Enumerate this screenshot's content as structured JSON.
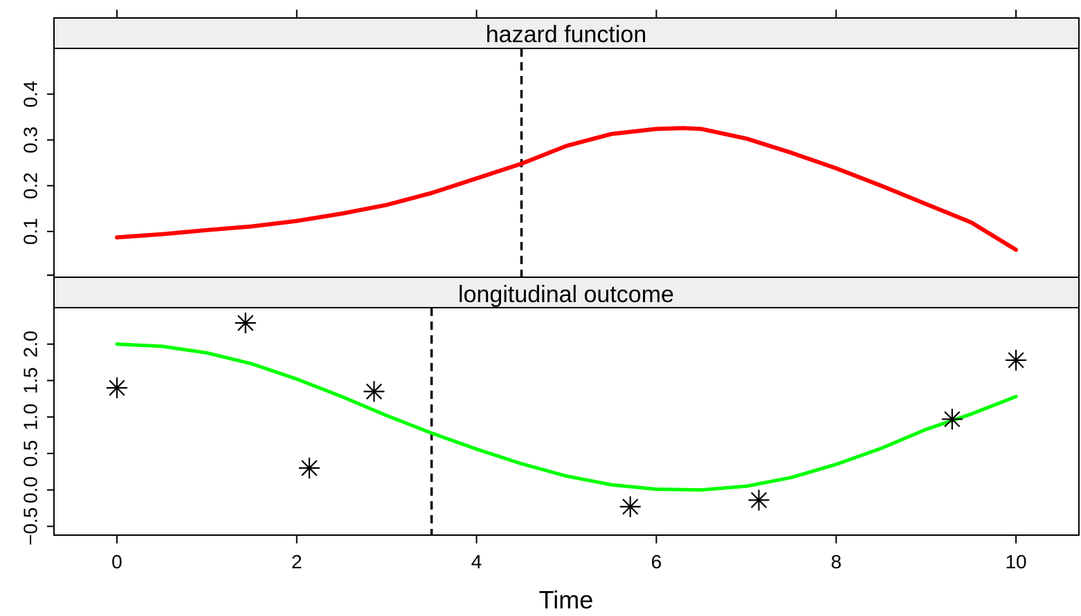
{
  "chart_data": [
    {
      "type": "line",
      "panel": "top",
      "title": "hazard function",
      "xlim": [
        -0.7,
        10.7
      ],
      "ylim": [
        0,
        0.5
      ],
      "x_ticks": [
        "0",
        "2",
        "4",
        "6",
        "8",
        "10"
      ],
      "y_ticks": [
        "0.1",
        "0.2",
        "0.3",
        "0.4"
      ],
      "series": [
        {
          "color": "#ff0000",
          "x": [
            0,
            0.5,
            1,
            1.5,
            2,
            2.5,
            3,
            3.5,
            4,
            4.5,
            5,
            5.5,
            6,
            6.3,
            6.5,
            7,
            7.5,
            8,
            8.5,
            9,
            9.5,
            10
          ],
          "y": [
            0.087,
            0.094,
            0.103,
            0.111,
            0.123,
            0.139,
            0.158,
            0.184,
            0.216,
            0.248,
            0.287,
            0.313,
            0.324,
            0.326,
            0.324,
            0.303,
            0.272,
            0.238,
            0.2,
            0.16,
            0.12,
            0.06
          ]
        }
      ],
      "vline": {
        "x": 4.5,
        "style": "dashed"
      }
    },
    {
      "type": "line",
      "panel": "bottom",
      "title": "longitudinal outcome",
      "xlim": [
        -0.7,
        10.7
      ],
      "ylim": [
        -0.62,
        2.5
      ],
      "xlabel": "Time",
      "x_ticks": [
        "0",
        "2",
        "4",
        "6",
        "8",
        "10"
      ],
      "y_ticks": [
        "−0.5",
        "0.0",
        "0.5",
        "1.0",
        "1.5",
        "2.0"
      ],
      "series": [
        {
          "color": "#00ff00",
          "x": [
            0,
            0.5,
            1,
            1.5,
            2,
            2.5,
            3,
            3.5,
            4,
            4.5,
            5,
            5.5,
            6,
            6.5,
            7,
            7.5,
            8,
            8.5,
            9,
            9.5,
            10
          ],
          "y": [
            2.0,
            1.97,
            1.88,
            1.73,
            1.52,
            1.28,
            1.02,
            0.78,
            0.56,
            0.36,
            0.19,
            0.07,
            0.01,
            0.0,
            0.05,
            0.17,
            0.35,
            0.57,
            0.83,
            1.04,
            1.28
          ]
        },
        {
          "type": "scatter",
          "marker": "asterisk",
          "x": [
            0,
            1.43,
            2.14,
            2.86,
            5.71,
            7.14,
            9.29,
            10
          ],
          "y": [
            1.4,
            2.29,
            0.3,
            1.35,
            -0.23,
            -0.14,
            0.97,
            1.78
          ]
        }
      ],
      "vline": {
        "x": 3.5,
        "style": "dashed"
      }
    }
  ]
}
